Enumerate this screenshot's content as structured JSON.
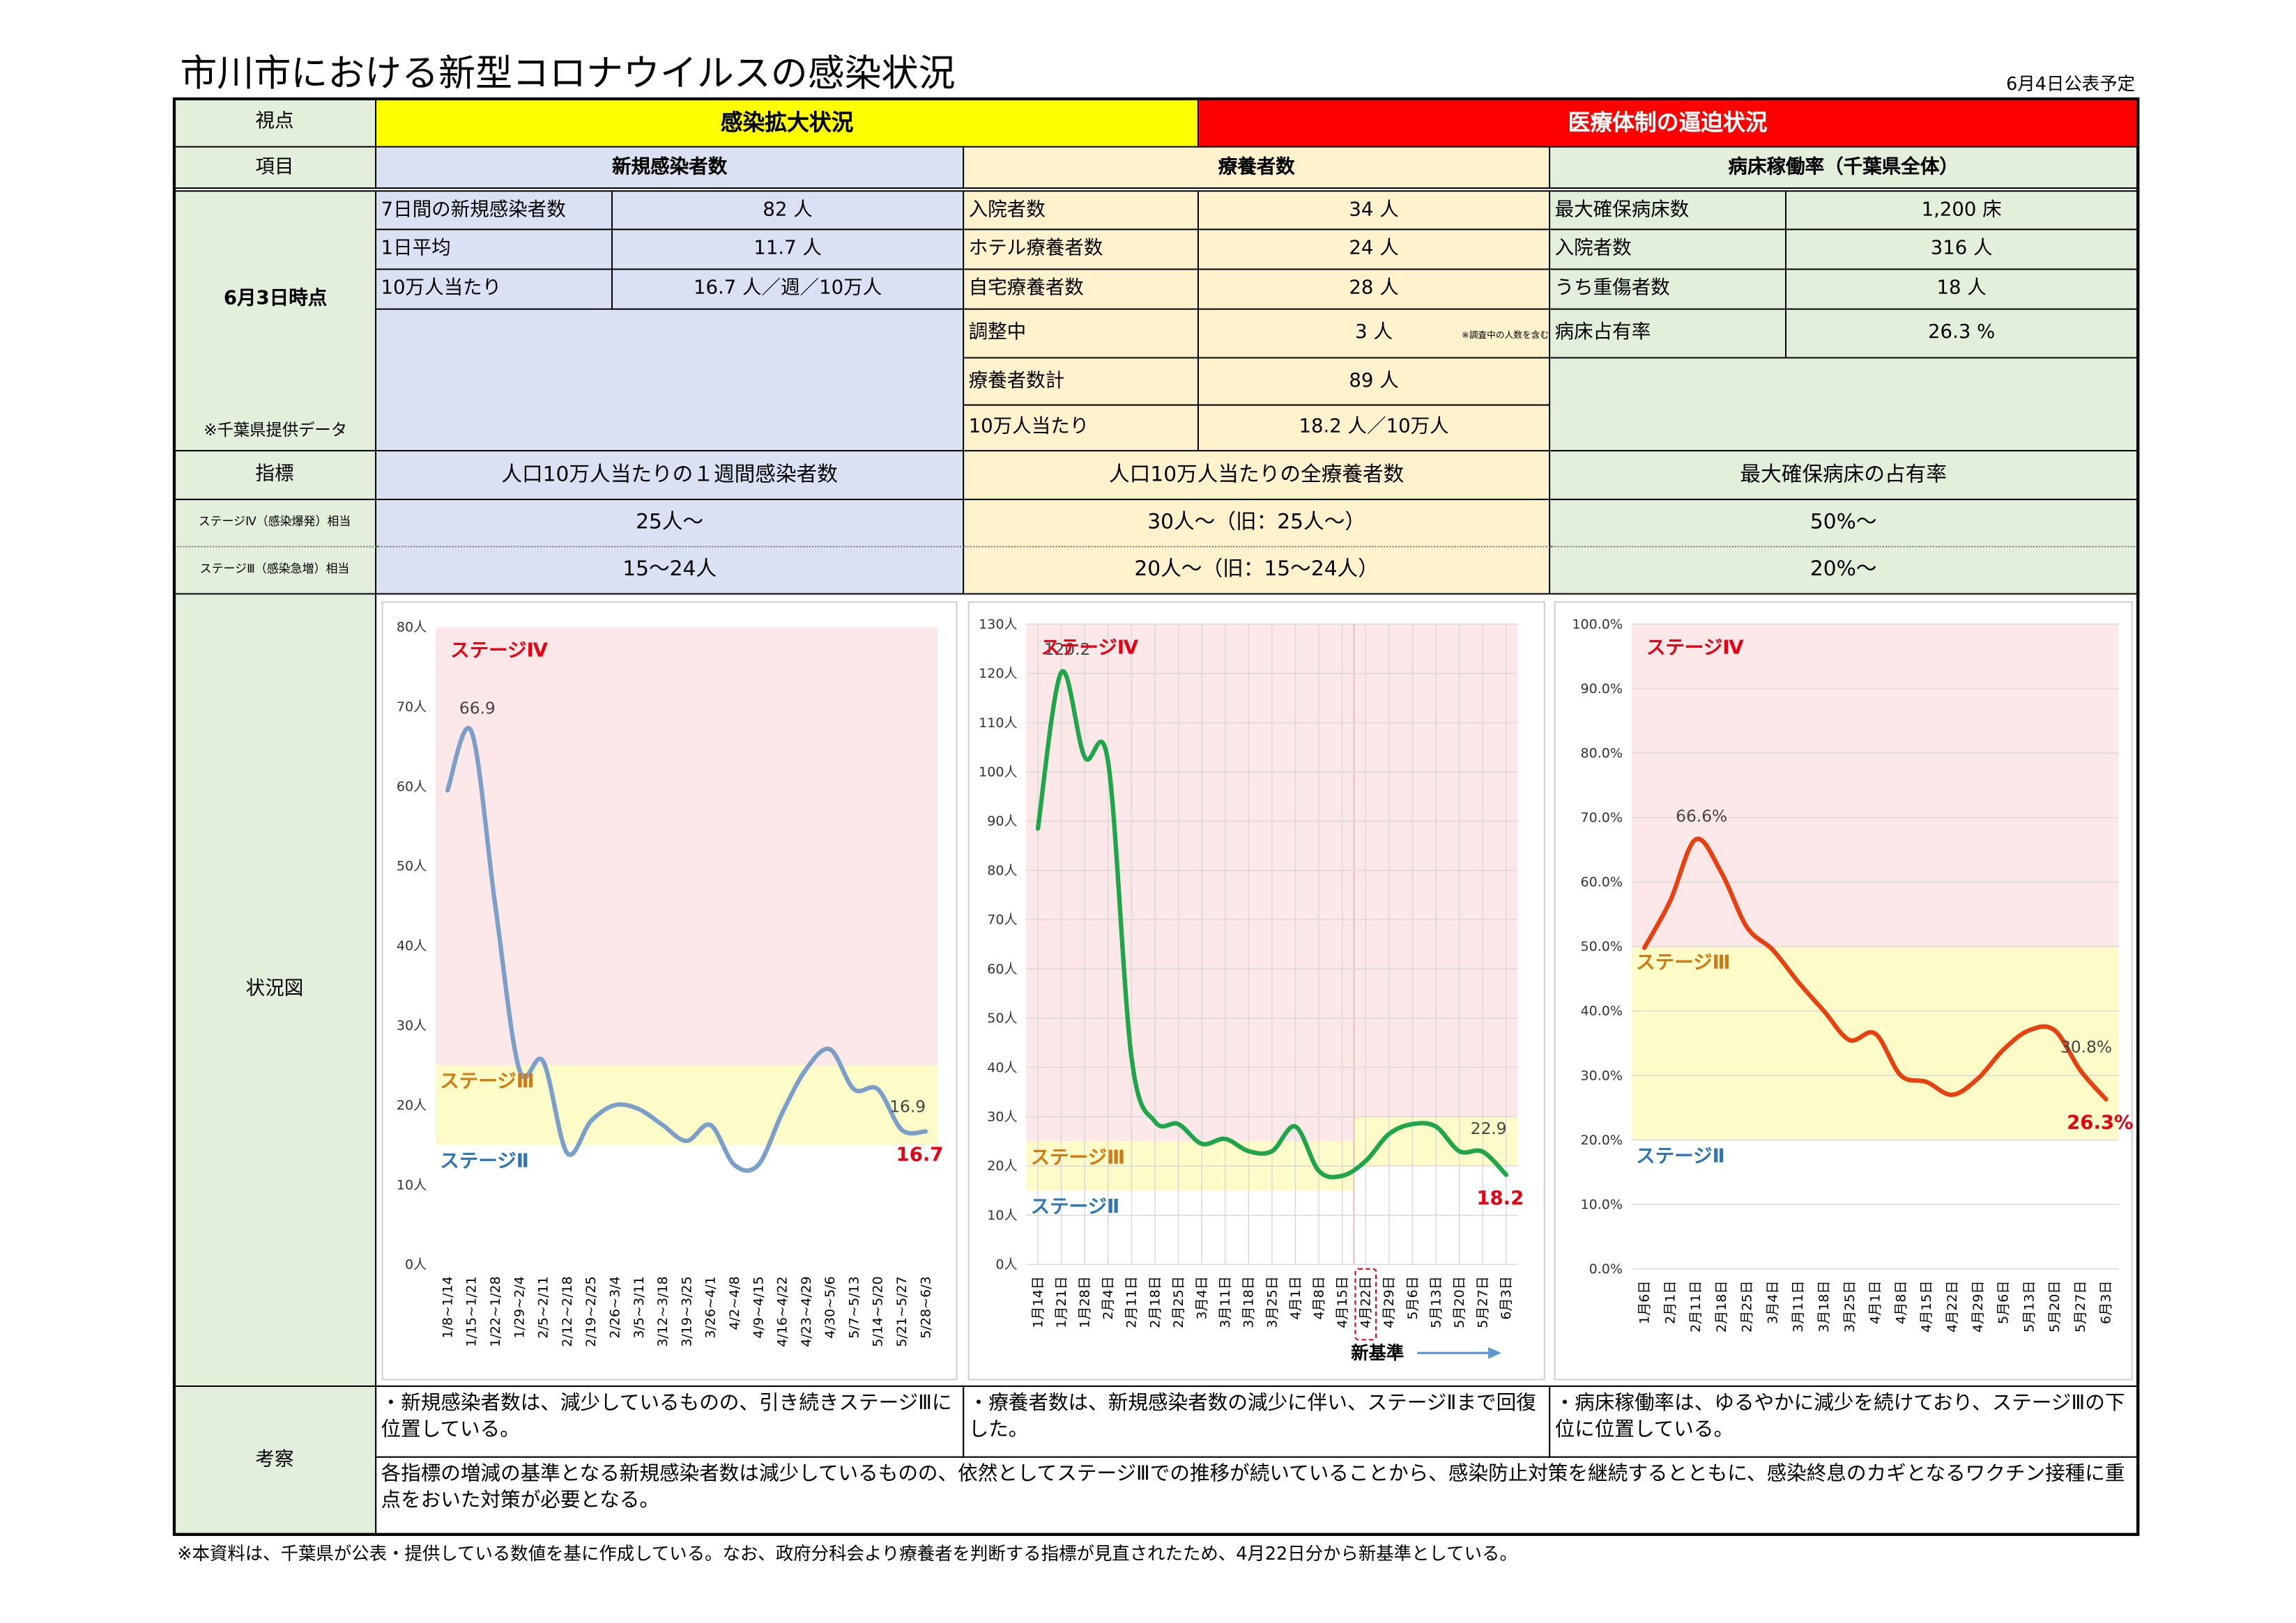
{
  "title": "市川市における新型コロナウイルスの感染状況",
  "publish_note": "6月4日公表予定",
  "table": {
    "perspective": {
      "label": "視点",
      "spread": "感染拡大状況",
      "medical": "医療体制の逼迫状況"
    },
    "item": {
      "label": "項目",
      "columns": [
        "新規感染者数",
        "療養者数",
        "病床稼働率（千葉県全体）"
      ]
    },
    "status": {
      "label": "6月3日時点",
      "source": "※千葉県提供データ",
      "note": "※調査中の人数を含む",
      "columns": [
        [
          [
            "7日間の新規感染者数",
            "82 人"
          ],
          [
            "1日平均",
            "11.7 人"
          ],
          [
            "10万人当たり",
            "16.7 人／週／10万人"
          ]
        ],
        [
          [
            "入院者数",
            "34 人"
          ],
          [
            "ホテル療養者数",
            "24 人"
          ],
          [
            "自宅療養者数",
            "28 人"
          ],
          [
            "調整中",
            "3 人"
          ],
          [
            "療養者数計",
            "89 人"
          ],
          [
            "10万人当たり",
            "18.2 人／10万人"
          ]
        ],
        [
          [
            "最大確保病床数",
            "1,200 床"
          ],
          [
            "入院者数",
            "316 人"
          ],
          [
            "うち重傷者数",
            "18 人"
          ],
          [
            "病床占有率",
            "26.3 %"
          ]
        ]
      ]
    },
    "indicator": {
      "label": "指標",
      "columns": [
        "人口10万人当たりの１週間感染者数",
        "人口10万人当たりの全療養者数",
        "最大確保病床の占有率"
      ]
    },
    "stage4": {
      "label": "ステージⅣ（感染爆発）相当",
      "columns": [
        "25人～",
        "30人～（旧：25人～）",
        "50%～"
      ]
    },
    "stage3": {
      "label": "ステージⅢ（感染急増）相当",
      "columns": [
        "15～24人",
        "20人～（旧：15～24人）",
        "20%～"
      ]
    },
    "chart_label": "状況図",
    "discussion": {
      "label": "考察",
      "columns": [
        "・新規感染者数は、減少しているものの、引き続きステージⅢに位置している。",
        "・療養者数は、新規感染者数の減少に伴い、ステージⅡまで回復した。",
        "・病床稼働率は、ゆるやかに減少を続けており、ステージⅢの下位に位置している。"
      ],
      "summary": "各指標の増減の基準となる新規感染者数は減少しているものの、依然としてステージⅢでの推移が続いていることから、感染防止対策を継続するとともに、感染終息のカギとなるワクチン接種に重点をおいた対策が必要となる。"
    }
  },
  "footnote": "※本資料は、千葉県が公表・提供している数値を基に作成している。なお、政府分科会より療養者を判断する指標が見直されたため、4月22日分から新基準としている。",
  "chart_data": [
    {
      "type": "line",
      "color": "#7b9fc9",
      "grid": "none",
      "highlight_last": true,
      "highlight_color": "#e60012",
      "labeled": [
        1,
        19,
        20
      ],
      "categories": [
        "1/8~1/14",
        "1/15~1/21",
        "1/22~1/28",
        "1/29~2/4",
        "2/5~2/11",
        "2/12~2/18",
        "2/19~2/25",
        "2/26~3/4",
        "3/5~3/11",
        "3/12~3/18",
        "3/19~3/25",
        "3/26~4/1",
        "4/2~4/8",
        "4/9~4/15",
        "4/16~4/22",
        "4/23~4/29",
        "4/30~5/6",
        "5/7~5/13",
        "5/14~5/20",
        "5/21~5/27",
        "5/28~6/3"
      ],
      "values": [
        59.5,
        66.9,
        45,
        24.5,
        25.5,
        14,
        18,
        20,
        19.5,
        17.5,
        15.5,
        17.5,
        12.5,
        12.5,
        19,
        24.5,
        27,
        22,
        22,
        16.9,
        16.7
      ],
      "ylim": [
        0,
        80
      ],
      "yticks": [
        {
          "value": 0,
          "label": "0人"
        },
        {
          "value": 10,
          "label": "10人"
        },
        {
          "value": 20,
          "label": "20人"
        },
        {
          "value": 30,
          "label": "30人"
        },
        {
          "value": 40,
          "label": "40人"
        },
        {
          "value": 50,
          "label": "50人"
        },
        {
          "value": 60,
          "label": "60人"
        },
        {
          "value": 70,
          "label": "70人"
        },
        {
          "value": 80,
          "label": "80人"
        }
      ],
      "bands": [
        {
          "name": "ステージⅣ",
          "from": 25,
          "to": 80,
          "fill": "#fce8e8",
          "color": "#e60012"
        },
        {
          "name": "ステージⅢ",
          "from": 15,
          "to": 25,
          "fill": "#fdfbc8",
          "color": "#d2790f"
        }
      ],
      "stage2": {
        "name": "ステージⅡ",
        "color": "#2e75b6"
      }
    },
    {
      "type": "line",
      "color": "#1fa54a",
      "grid": "both",
      "highlight_last": true,
      "highlight_color": "#e60012",
      "labeled": [
        1,
        19,
        20
      ],
      "categories": [
        "1月14日",
        "1月21日",
        "1月28日",
        "2月4日",
        "2月11日",
        "2月18日",
        "2月25日",
        "3月4日",
        "3月11日",
        "3月18日",
        "3月25日",
        "4月1日",
        "4月8日",
        "4月15日",
        "4月22日",
        "4月29日",
        "5月6日",
        "5月13日",
        "5月20日",
        "5月27日",
        "6月3日"
      ],
      "values": [
        88.5,
        120.2,
        103,
        102,
        42,
        29,
        28.5,
        24.5,
        25.5,
        23,
        23,
        28,
        19,
        18,
        21,
        26.5,
        28.5,
        28,
        23,
        22.9,
        18.2
      ],
      "ylim": [
        0,
        130
      ],
      "yticks": [
        {
          "value": 0,
          "label": "0人"
        },
        {
          "value": 10,
          "label": "10人"
        },
        {
          "value": 20,
          "label": "20人"
        },
        {
          "value": 30,
          "label": "30人"
        },
        {
          "value": 40,
          "label": "40人"
        },
        {
          "value": 50,
          "label": "50人"
        },
        {
          "value": 60,
          "label": "60人"
        },
        {
          "value": 70,
          "label": "70人"
        },
        {
          "value": 80,
          "label": "80人"
        },
        {
          "value": 90,
          "label": "90人"
        },
        {
          "value": 100,
          "label": "100人"
        },
        {
          "value": 110,
          "label": "110人"
        },
        {
          "value": 120,
          "label": "120人"
        },
        {
          "value": 130,
          "label": "130人"
        }
      ],
      "bands": [
        {
          "name": "ステージⅣ",
          "from": 25,
          "to": 130,
          "fill": "#fce8e8",
          "color": "#e60012"
        },
        {
          "name": "ステージⅢ",
          "from": 15,
          "to": 25,
          "fill": "#fdfbc8",
          "color": "#d2790f"
        }
      ],
      "stage2": {
        "name": "ステージⅡ",
        "color": "#2e75b6"
      },
      "new_standard": {
        "index": 14,
        "label": "新基準",
        "bands": [
          {
            "from": 30,
            "to": 130
          },
          {
            "from": 20,
            "to": 30
          }
        ]
      }
    },
    {
      "type": "line",
      "color": "#e8400f",
      "grid": "y",
      "highlight_last": true,
      "highlight_color": "#e60012",
      "categories": [
        "1月6日",
        "2月1日",
        "2月11日",
        "2月18日",
        "2月25日",
        "3月4日",
        "3月11日",
        "3月18日",
        "3月25日",
        "4月1日",
        "4月8日",
        "4月15日",
        "4月22日",
        "4月29日",
        "5月6日",
        "5月13日",
        "5月20日",
        "5月27日",
        "6月3日"
      ],
      "values": [
        49.8,
        57,
        66.6,
        61.5,
        53,
        49.5,
        44.5,
        40,
        35.5,
        36.5,
        30,
        29,
        27,
        29.5,
        34,
        37,
        37,
        30.8,
        26.3
      ],
      "value_labels": [
        null,
        null,
        "66.6%",
        null,
        null,
        null,
        null,
        null,
        null,
        null,
        null,
        null,
        null,
        null,
        null,
        null,
        null,
        "30.8%",
        "26.3%"
      ],
      "ylim": [
        0,
        100
      ],
      "yticks": [
        {
          "value": 0,
          "label": "0.0%"
        },
        {
          "value": 10,
          "label": "10.0%"
        },
        {
          "value": 20,
          "label": "20.0%"
        },
        {
          "value": 30,
          "label": "30.0%"
        },
        {
          "value": 40,
          "label": "40.0%"
        },
        {
          "value": 50,
          "label": "50.0%"
        },
        {
          "value": 60,
          "label": "60.0%"
        },
        {
          "value": 70,
          "label": "70.0%"
        },
        {
          "value": 80,
          "label": "80.0%"
        },
        {
          "value": 90,
          "label": "90.0%"
        },
        {
          "value": 100,
          "label": "100.0%"
        }
      ],
      "bands": [
        {
          "name": "ステージⅣ",
          "from": 50,
          "to": 100,
          "fill": "#fce8e8",
          "color": "#e60012"
        },
        {
          "name": "ステージⅢ",
          "from": 20,
          "to": 50,
          "fill": "#fdfbc8",
          "color": "#d2790f"
        }
      ],
      "stage2": {
        "name": "ステージⅡ",
        "color": "#2e75b6"
      }
    }
  ]
}
